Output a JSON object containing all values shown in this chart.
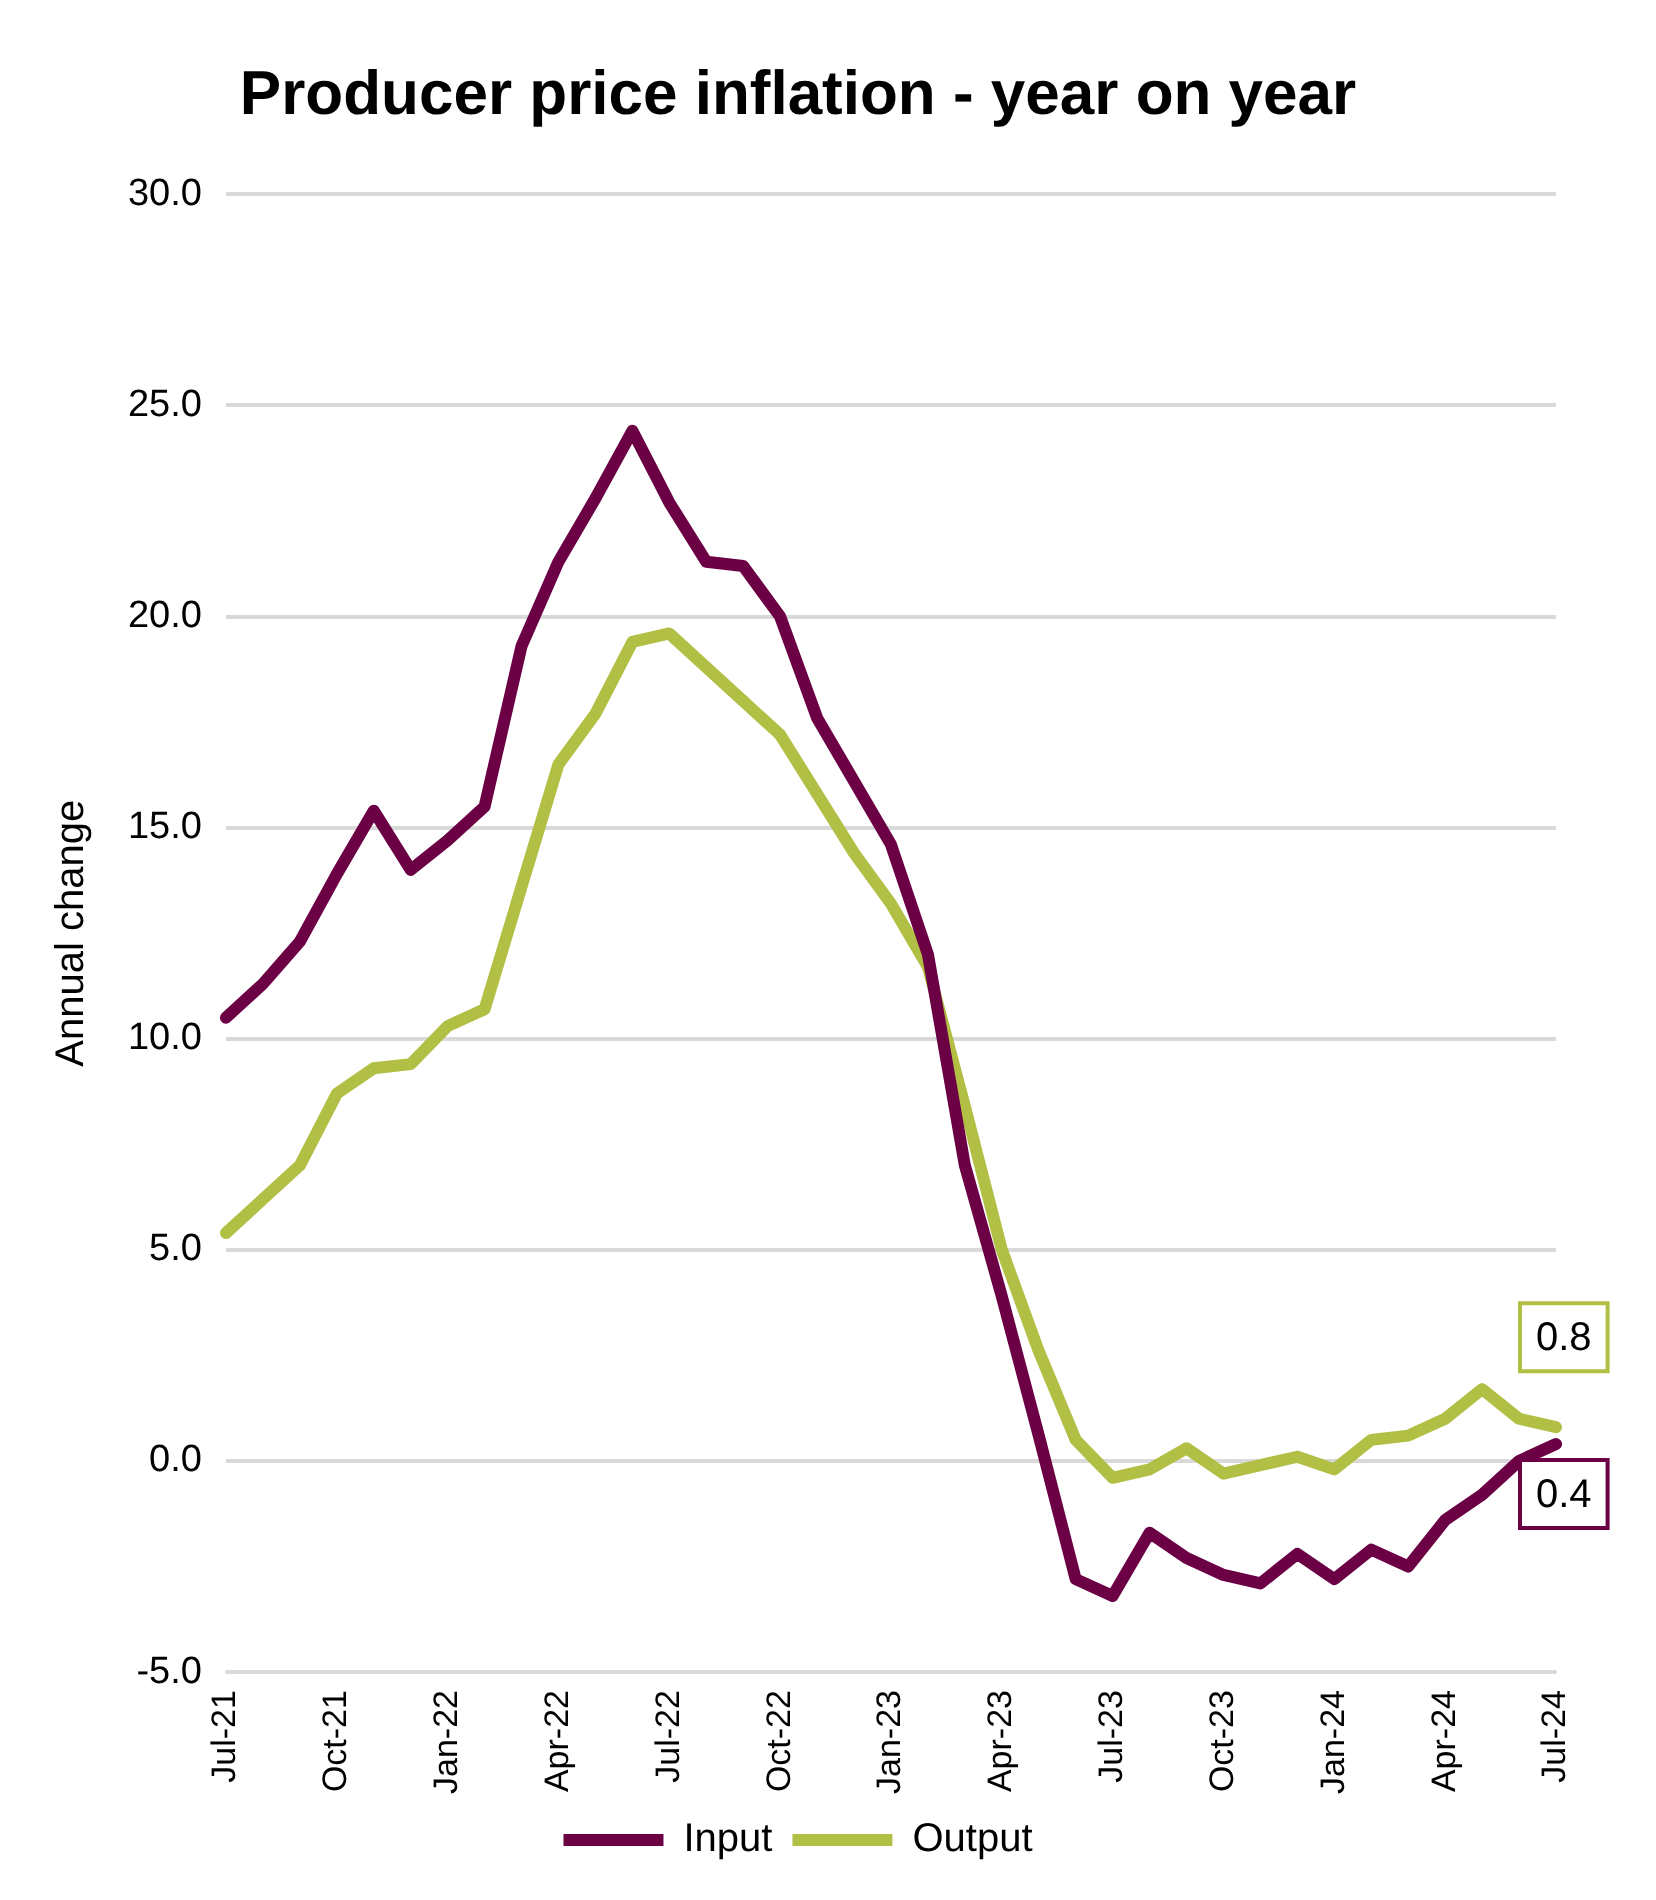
{
  "chart_data": {
    "type": "line",
    "title": "Producer price inflation - year on year",
    "ylabel": "Annual change",
    "categories": [
      "Jul-21",
      null,
      null,
      "Oct-21",
      null,
      null,
      "Jan-22",
      null,
      null,
      "Apr-22",
      null,
      null,
      "Jul-22",
      null,
      null,
      "Oct-22",
      null,
      null,
      "Jan-23",
      null,
      null,
      "Apr-23",
      null,
      null,
      "Jul-23",
      null,
      null,
      "Oct-23",
      null,
      null,
      "Jan-24",
      null,
      null,
      "Apr-24",
      null,
      null,
      "Jul-24"
    ],
    "series": [
      {
        "name": "Input",
        "color": "#6b0045",
        "values": [
          10.5,
          11.3,
          12.3,
          13.9,
          15.4,
          14.0,
          14.7,
          15.5,
          19.3,
          21.3,
          22.8,
          24.4,
          22.7,
          21.3,
          21.2,
          20.0,
          17.6,
          16.1,
          14.6,
          12.0,
          7.0,
          3.9,
          0.6,
          -2.8,
          -3.2,
          -1.7,
          -2.3,
          -2.7,
          -2.9,
          -2.2,
          -2.8,
          -2.1,
          -2.5,
          -1.4,
          -0.8,
          0.0,
          0.4
        ],
        "value_labels": [
          null,
          null,
          null,
          null,
          null,
          null,
          null,
          null,
          null,
          null,
          null,
          null,
          null,
          null,
          null,
          null,
          null,
          null,
          null,
          null,
          null,
          null,
          null,
          null,
          null,
          null,
          null,
          null,
          null,
          null,
          null,
          null,
          null,
          null,
          null,
          null,
          "0.4"
        ]
      },
      {
        "name": "Output",
        "color": "#b2bf45",
        "values": [
          5.4,
          6.2,
          7.0,
          8.7,
          9.3,
          9.4,
          10.3,
          10.7,
          13.6,
          16.5,
          17.7,
          19.4,
          19.6,
          18.8,
          18.0,
          17.2,
          15.8,
          14.4,
          13.2,
          11.7,
          8.4,
          5.0,
          2.6,
          0.5,
          -0.4,
          -0.2,
          0.3,
          -0.3,
          -0.1,
          0.1,
          -0.2,
          0.5,
          0.6,
          1.0,
          1.7,
          1.0,
          0.8
        ],
        "value_labels": [
          null,
          null,
          null,
          null,
          null,
          null,
          null,
          null,
          null,
          null,
          null,
          null,
          null,
          null,
          null,
          null,
          null,
          null,
          null,
          null,
          null,
          null,
          null,
          null,
          null,
          null,
          null,
          null,
          null,
          null,
          null,
          null,
          null,
          null,
          null,
          null,
          "0.8"
        ]
      }
    ],
    "ylim": [
      -5,
      30
    ],
    "yticks": [
      {
        "value": -5,
        "label": "-5.0"
      },
      {
        "value": 0,
        "label": "0.0"
      },
      {
        "value": 5,
        "label": "5.0"
      },
      {
        "value": 10,
        "label": "10.0"
      },
      {
        "value": 15,
        "label": "15.0"
      },
      {
        "value": 20,
        "label": "20.0"
      },
      {
        "value": 25,
        "label": "25.0"
      },
      {
        "value": 30,
        "label": "30.0"
      }
    ],
    "grid": "y",
    "legend": "bottom",
    "marker": "none",
    "line_style": "solid"
  }
}
